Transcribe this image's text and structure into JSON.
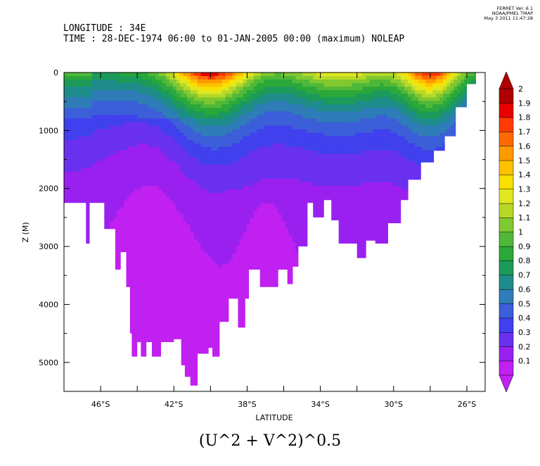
{
  "header": {
    "line1": "LONGITUDE : 34E",
    "line2": "TIME : 28-DEC-1974 06:00 to 01-JAN-2005 00:00 (maximum) NOLEAP"
  },
  "stamp": {
    "line1": "FERRET Ver. 6.1",
    "line2": "NOAA/PMEL TMAP",
    "line3": "May  3 2011 11:47:28"
  },
  "bottom_title": "(U^2 + V^2)^0.5",
  "colors": {
    "levels": [
      "#c020f0",
      "#9a20f0",
      "#6a30f0",
      "#4040ee",
      "#3c5ed8",
      "#2e7cb8",
      "#1f8c8c",
      "#1c9a5a",
      "#2aa83a",
      "#50b838",
      "#80c830",
      "#b8d828",
      "#e0e820",
      "#f8e000",
      "#ffc000",
      "#ff9a00",
      "#ff6a00",
      "#ff3c00",
      "#e80000",
      "#b00000"
    ],
    "mask": "#ffffff"
  },
  "chart_data": {
    "type": "heatmap",
    "title": "(U^2 + V^2)^0.5",
    "xlabel": "LATITUDE",
    "ylabel": "Z (M)",
    "x_range": [
      -48,
      -25
    ],
    "y_range": [
      0,
      5500
    ],
    "y_reversed": true,
    "x_ticks": [
      "46°S",
      "44°S",
      "42°S",
      "40°S",
      "38°S",
      "36°S",
      "34°S",
      "32°S",
      "30°S",
      "28°S",
      "26°S"
    ],
    "x_tick_labels": [
      "46°S",
      "42°S",
      "38°S",
      "34°S",
      "30°S",
      "26°S"
    ],
    "y_ticks": [
      "0",
      "1000",
      "2000",
      "3000",
      "4000",
      "5000"
    ],
    "colorbar": {
      "labels": [
        "2",
        "1.9",
        "1.8",
        "1.7",
        "1.6",
        "1.5",
        "1.4",
        "1.3",
        "1.2",
        "1.1",
        "1",
        "0.9",
        "0.8",
        "0.7",
        "0.6",
        "0.5",
        "0.4",
        "0.3",
        "0.2",
        "0.1"
      ],
      "levels": [
        0.1,
        0.2,
        0.3,
        0.4,
        0.5,
        0.6,
        0.7,
        0.8,
        0.9,
        1.0,
        1.1,
        1.2,
        1.3,
        1.4,
        1.5,
        1.6,
        1.7,
        1.8,
        1.9,
        2.0
      ]
    },
    "bottom_profile_m": [
      [
        -47.9,
        2250
      ],
      [
        -47.0,
        2250
      ],
      [
        -46.8,
        2950
      ],
      [
        -46.6,
        2250
      ],
      [
        -46.0,
        2250
      ],
      [
        -45.8,
        2700
      ],
      [
        -45.4,
        2700
      ],
      [
        -45.2,
        3400
      ],
      [
        -44.9,
        3100
      ],
      [
        -44.6,
        3700
      ],
      [
        -44.4,
        4500
      ],
      [
        -44.3,
        4900
      ],
      [
        -44.0,
        4650
      ],
      [
        -43.8,
        4900
      ],
      [
        -43.5,
        4650
      ],
      [
        -43.2,
        4900
      ],
      [
        -42.7,
        4650
      ],
      [
        -42.4,
        4650
      ],
      [
        -42.0,
        4600
      ],
      [
        -41.6,
        5050
      ],
      [
        -41.4,
        5250
      ],
      [
        -41.1,
        5400
      ],
      [
        -40.7,
        4850
      ],
      [
        -40.1,
        4750
      ],
      [
        -39.9,
        4900
      ],
      [
        -39.5,
        4300
      ],
      [
        -39.0,
        3900
      ],
      [
        -38.5,
        4400
      ],
      [
        -38.1,
        3900
      ],
      [
        -37.9,
        3400
      ],
      [
        -37.3,
        3700
      ],
      [
        -36.6,
        3700
      ],
      [
        -36.3,
        3400
      ],
      [
        -35.8,
        3650
      ],
      [
        -35.5,
        3350
      ],
      [
        -35.2,
        3000
      ],
      [
        -34.7,
        2250
      ],
      [
        -34.4,
        2500
      ],
      [
        -33.8,
        2200
      ],
      [
        -33.4,
        2550
      ],
      [
        -33.0,
        2950
      ],
      [
        -32.5,
        2950
      ],
      [
        -32.0,
        3200
      ],
      [
        -31.5,
        2900
      ],
      [
        -31.0,
        2950
      ],
      [
        -30.3,
        2600
      ],
      [
        -29.6,
        2200
      ],
      [
        -29.2,
        1850
      ],
      [
        -28.5,
        1550
      ],
      [
        -27.8,
        1350
      ],
      [
        -27.2,
        1100
      ],
      [
        -26.6,
        600
      ],
      [
        -26.0,
        200
      ],
      [
        -25.5,
        0
      ]
    ],
    "max_value_region": "near-surface maxima (~2) near 28°S and ~40°S"
  }
}
